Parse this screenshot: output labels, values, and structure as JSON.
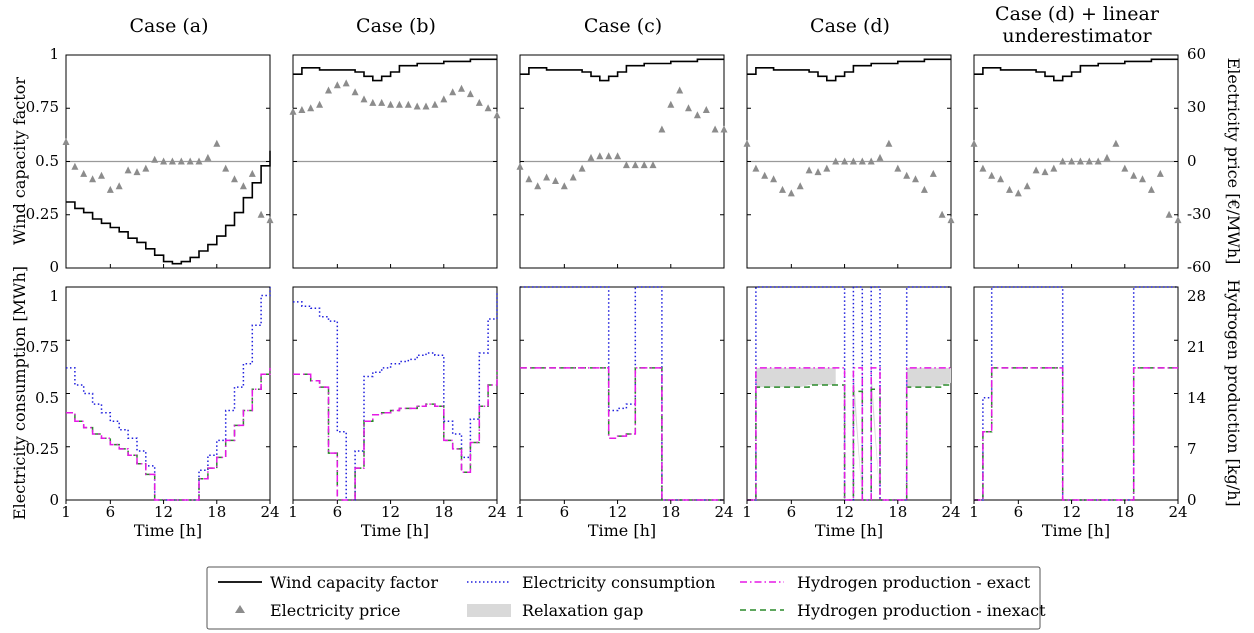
{
  "figure": {
    "case_titles": [
      "Case (a)",
      "Case (b)",
      "Case (c)",
      "Case (d)",
      "Case (d) + linear",
      "underestimator"
    ],
    "top_left_ylabel": "Wind capacity factor",
    "top_right_ylabel": "Electricity price [€/MWh]",
    "bottom_left_ylabel": "Electricity consumption [MWh]",
    "bottom_right_ylabel": "Hydrogen production [kg/h]",
    "xlabel": "Time [h]",
    "x_ticks": [
      "1",
      "6",
      "12",
      "18",
      "24"
    ],
    "top_left_ticks": [
      "0",
      "0.25",
      "0.5",
      "0.75",
      "1"
    ],
    "top_right_ticks": [
      "-60",
      "-30",
      "0",
      "30",
      "60"
    ],
    "bottom_left_ticks": [
      "0",
      "0.25",
      "0.5",
      "0.75",
      "1"
    ],
    "bottom_right_ticks": [
      "0",
      "7",
      "14",
      "21",
      "28"
    ]
  },
  "legend": {
    "items": [
      {
        "label": "Wind capacity factor",
        "style": "line",
        "color": "#000000"
      },
      {
        "label": "Electricity consumption",
        "style": "dotted",
        "color": "#1f1fdd"
      },
      {
        "label": "Hydrogen production - exact",
        "style": "dashdot",
        "color": "#e619e6"
      },
      {
        "label": "Electricity price",
        "style": "triangle",
        "color": "#8c8c8c"
      },
      {
        "label": "Relaxation gap",
        "style": "patch",
        "color": "#d9d9d9"
      },
      {
        "label": "Hydrogen production - inexact",
        "style": "dashed",
        "color": "#2a8a2a"
      }
    ]
  },
  "chart_data": [
    {
      "type": "line",
      "panel": "Case (a)",
      "xlabel": "Time [h]",
      "ylabel": "Wind capacity factor",
      "y2label": "Electricity price [€/MWh]",
      "xlim": [
        1,
        24
      ],
      "ylim": [
        0,
        1
      ],
      "y2lim": [
        -60,
        60
      ],
      "hours": [
        1,
        2,
        3,
        4,
        5,
        6,
        7,
        8,
        9,
        10,
        11,
        12,
        13,
        14,
        15,
        16,
        17,
        18,
        19,
        20,
        21,
        22,
        23,
        24
      ],
      "wind": [
        0.31,
        0.28,
        0.26,
        0.23,
        0.21,
        0.19,
        0.17,
        0.14,
        0.12,
        0.09,
        0.06,
        0.03,
        0.02,
        0.03,
        0.05,
        0.08,
        0.11,
        0.15,
        0.2,
        0.26,
        0.33,
        0.4,
        0.48,
        0.55
      ],
      "price": [
        11,
        -3,
        -7,
        -10,
        -8,
        -16,
        -14,
        -5,
        -6,
        -4,
        1,
        0,
        0,
        0,
        0,
        0,
        2,
        10,
        -4,
        -10,
        -14,
        -7,
        -30,
        -33
      ],
      "consumption": [
        0.62,
        0.54,
        0.5,
        0.45,
        0.41,
        0.37,
        0.33,
        0.29,
        0.23,
        0.16,
        0,
        0,
        0,
        0,
        0,
        0.14,
        0.21,
        0.28,
        0.42,
        0.53,
        0.64,
        0.82,
        0.96,
        1.0
      ],
      "h2_exact": [
        0.41,
        0.37,
        0.34,
        0.31,
        0.29,
        0.26,
        0.24,
        0.21,
        0.17,
        0.12,
        0,
        0,
        0,
        0,
        0,
        0.1,
        0.15,
        0.2,
        0.28,
        0.35,
        0.42,
        0.52,
        0.59,
        0.62
      ],
      "h2_inexact": [
        0.41,
        0.37,
        0.34,
        0.31,
        0.29,
        0.26,
        0.24,
        0.21,
        0.17,
        0.12,
        0,
        0,
        0,
        0,
        0,
        0.1,
        0.15,
        0.2,
        0.28,
        0.35,
        0.42,
        0.52,
        0.59,
        0.62
      ],
      "relaxation_gap": []
    },
    {
      "type": "line",
      "panel": "Case (b)",
      "xlabel": "Time [h]",
      "ylabel": "Wind capacity factor",
      "y2label": "Electricity price [€/MWh]",
      "xlim": [
        1,
        24
      ],
      "ylim": [
        0,
        1
      ],
      "y2lim": [
        -60,
        60
      ],
      "hours": [
        1,
        2,
        3,
        4,
        5,
        6,
        7,
        8,
        9,
        10,
        11,
        12,
        13,
        14,
        15,
        16,
        17,
        18,
        19,
        20,
        21,
        22,
        23,
        24
      ],
      "wind": [
        0.91,
        0.94,
        0.94,
        0.93,
        0.93,
        0.93,
        0.93,
        0.92,
        0.9,
        0.88,
        0.9,
        0.92,
        0.95,
        0.95,
        0.96,
        0.96,
        0.96,
        0.97,
        0.97,
        0.97,
        0.98,
        0.98,
        0.98,
        0.98
      ],
      "price": [
        28,
        29,
        30,
        32,
        40,
        43,
        44,
        39,
        35,
        33,
        33,
        32,
        32,
        32,
        31,
        31,
        32,
        35,
        39,
        41,
        38,
        33,
        30,
        26
      ],
      "consumption": [
        0.93,
        0.91,
        0.9,
        0.86,
        0.84,
        0.32,
        0,
        0.23,
        0.58,
        0.6,
        0.62,
        0.64,
        0.65,
        0.66,
        0.68,
        0.69,
        0.68,
        0.37,
        0.31,
        0.2,
        0.38,
        0.69,
        0.85,
        0.98
      ],
      "h2_exact": [
        0.59,
        0.59,
        0.56,
        0.53,
        0.22,
        0,
        0,
        0.15,
        0.37,
        0.4,
        0.41,
        0.42,
        0.43,
        0.43,
        0.44,
        0.45,
        0.44,
        0.28,
        0.24,
        0.13,
        0.27,
        0.44,
        0.54,
        0.61
      ],
      "h2_inexact": [
        0.59,
        0.59,
        0.56,
        0.53,
        0.22,
        0,
        0,
        0.15,
        0.37,
        0.4,
        0.41,
        0.42,
        0.43,
        0.43,
        0.44,
        0.45,
        0.44,
        0.28,
        0.24,
        0.13,
        0.27,
        0.44,
        0.54,
        0.61
      ],
      "relaxation_gap": []
    },
    {
      "type": "line",
      "panel": "Case (c)",
      "xlabel": "Time [h]",
      "ylabel": "Wind capacity factor",
      "y2label": "Electricity price [€/MWh]",
      "xlim": [
        1,
        24
      ],
      "ylim": [
        0,
        1
      ],
      "y2lim": [
        -60,
        60
      ],
      "hours": [
        1,
        2,
        3,
        4,
        5,
        6,
        7,
        8,
        9,
        10,
        11,
        12,
        13,
        14,
        15,
        16,
        17,
        18,
        19,
        20,
        21,
        22,
        23,
        24
      ],
      "wind": [
        0.91,
        0.94,
        0.94,
        0.93,
        0.93,
        0.93,
        0.93,
        0.92,
        0.9,
        0.88,
        0.9,
        0.92,
        0.95,
        0.95,
        0.96,
        0.96,
        0.96,
        0.97,
        0.97,
        0.97,
        0.98,
        0.98,
        0.98,
        0.98
      ],
      "price": [
        -3,
        -10,
        -14,
        -9,
        -11,
        -14,
        -9,
        -4,
        2,
        3,
        3,
        3,
        -2,
        -2,
        -2,
        -2,
        18,
        32,
        40,
        30,
        26,
        29,
        18,
        18
      ],
      "consumption": [
        1,
        1,
        1,
        1,
        1,
        1,
        1,
        1,
        1,
        1,
        0.42,
        0.43,
        0.45,
        1,
        1,
        1,
        0,
        0,
        0,
        0,
        0,
        0,
        0,
        0
      ],
      "h2_exact": [
        0.62,
        0.62,
        0.62,
        0.62,
        0.62,
        0.62,
        0.62,
        0.62,
        0.62,
        0.62,
        0.29,
        0.3,
        0.31,
        0.62,
        0.62,
        0.62,
        0,
        0,
        0,
        0,
        0,
        0,
        0,
        0
      ],
      "h2_inexact": [
        0.62,
        0.62,
        0.62,
        0.62,
        0.62,
        0.62,
        0.62,
        0.62,
        0.62,
        0.62,
        0.29,
        0.3,
        0.31,
        0.62,
        0.62,
        0.62,
        0,
        0,
        0,
        0,
        0,
        0,
        0,
        0
      ],
      "relaxation_gap": []
    },
    {
      "type": "line",
      "panel": "Case (d)",
      "xlabel": "Time [h]",
      "ylabel": "Wind capacity factor",
      "y2label": "Electricity price [€/MWh]",
      "xlim": [
        1,
        24
      ],
      "ylim": [
        0,
        1
      ],
      "y2lim": [
        -60,
        60
      ],
      "hours": [
        1,
        2,
        3,
        4,
        5,
        6,
        7,
        8,
        9,
        10,
        11,
        12,
        13,
        14,
        15,
        16,
        17,
        18,
        19,
        20,
        21,
        22,
        23,
        24
      ],
      "wind": [
        0.91,
        0.94,
        0.94,
        0.93,
        0.93,
        0.93,
        0.93,
        0.92,
        0.9,
        0.88,
        0.9,
        0.92,
        0.95,
        0.95,
        0.96,
        0.96,
        0.96,
        0.97,
        0.97,
        0.97,
        0.98,
        0.98,
        0.98,
        0.98
      ],
      "price": [
        10,
        -4,
        -8,
        -10,
        -16,
        -18,
        -14,
        -5,
        -6,
        -4,
        0,
        0,
        0,
        0,
        0,
        2,
        10,
        -4,
        -8,
        -10,
        -16,
        -7,
        -30,
        -33
      ],
      "consumption": [
        0,
        1,
        1,
        1,
        1,
        1,
        1,
        1,
        1,
        1,
        1,
        0,
        1,
        0,
        1,
        0,
        0,
        0,
        1,
        1,
        1,
        1,
        1,
        1
      ],
      "h2_exact": [
        0,
        0.62,
        0.62,
        0.62,
        0.62,
        0.62,
        0.62,
        0.62,
        0.62,
        0.62,
        0.62,
        0,
        0.62,
        0,
        0.62,
        0,
        0,
        0,
        0.62,
        0.62,
        0.62,
        0.62,
        0.62,
        0.62
      ],
      "h2_inexact": [
        0,
        0.53,
        0.53,
        0.53,
        0.53,
        0.53,
        0.53,
        0.54,
        0.54,
        0.54,
        0.54,
        0,
        0.51,
        0,
        0.52,
        0,
        0,
        0,
        0.53,
        0.53,
        0.53,
        0.53,
        0.54,
        0.55
      ],
      "relaxation_gap": [
        [
          2,
          11
        ],
        [
          13,
          14
        ],
        [
          15,
          16
        ],
        [
          19,
          24
        ]
      ]
    },
    {
      "type": "line",
      "panel": "Case (d) + linear underestimator",
      "xlabel": "Time [h]",
      "ylabel": "Wind capacity factor",
      "y2label": "Electricity price [€/MWh]",
      "xlim": [
        1,
        24
      ],
      "ylim": [
        0,
        1
      ],
      "y2lim": [
        -60,
        60
      ],
      "hours": [
        1,
        2,
        3,
        4,
        5,
        6,
        7,
        8,
        9,
        10,
        11,
        12,
        13,
        14,
        15,
        16,
        17,
        18,
        19,
        20,
        21,
        22,
        23,
        24
      ],
      "wind": [
        0.91,
        0.94,
        0.94,
        0.93,
        0.93,
        0.93,
        0.93,
        0.92,
        0.9,
        0.88,
        0.9,
        0.92,
        0.95,
        0.95,
        0.96,
        0.96,
        0.96,
        0.97,
        0.97,
        0.97,
        0.98,
        0.98,
        0.98,
        0.98
      ],
      "price": [
        10,
        -4,
        -8,
        -10,
        -16,
        -18,
        -14,
        -5,
        -6,
        -4,
        0,
        0,
        0,
        0,
        0,
        2,
        10,
        -4,
        -8,
        -10,
        -16,
        -7,
        -30,
        -33
      ],
      "consumption": [
        0,
        0.48,
        1,
        1,
        1,
        1,
        1,
        1,
        1,
        1,
        0,
        0,
        0,
        0,
        0,
        0,
        0,
        0,
        1,
        1,
        1,
        1,
        1,
        1
      ],
      "h2_exact": [
        0,
        0.32,
        0.62,
        0.62,
        0.62,
        0.62,
        0.62,
        0.62,
        0.62,
        0.62,
        0,
        0,
        0,
        0,
        0,
        0,
        0,
        0,
        0.62,
        0.62,
        0.62,
        0.62,
        0.62,
        0.62
      ],
      "h2_inexact": [
        0,
        0.32,
        0.62,
        0.62,
        0.62,
        0.62,
        0.62,
        0.62,
        0.62,
        0.62,
        0,
        0,
        0,
        0,
        0,
        0,
        0,
        0,
        0.62,
        0.62,
        0.62,
        0.62,
        0.62,
        0.62
      ],
      "relaxation_gap": []
    }
  ]
}
